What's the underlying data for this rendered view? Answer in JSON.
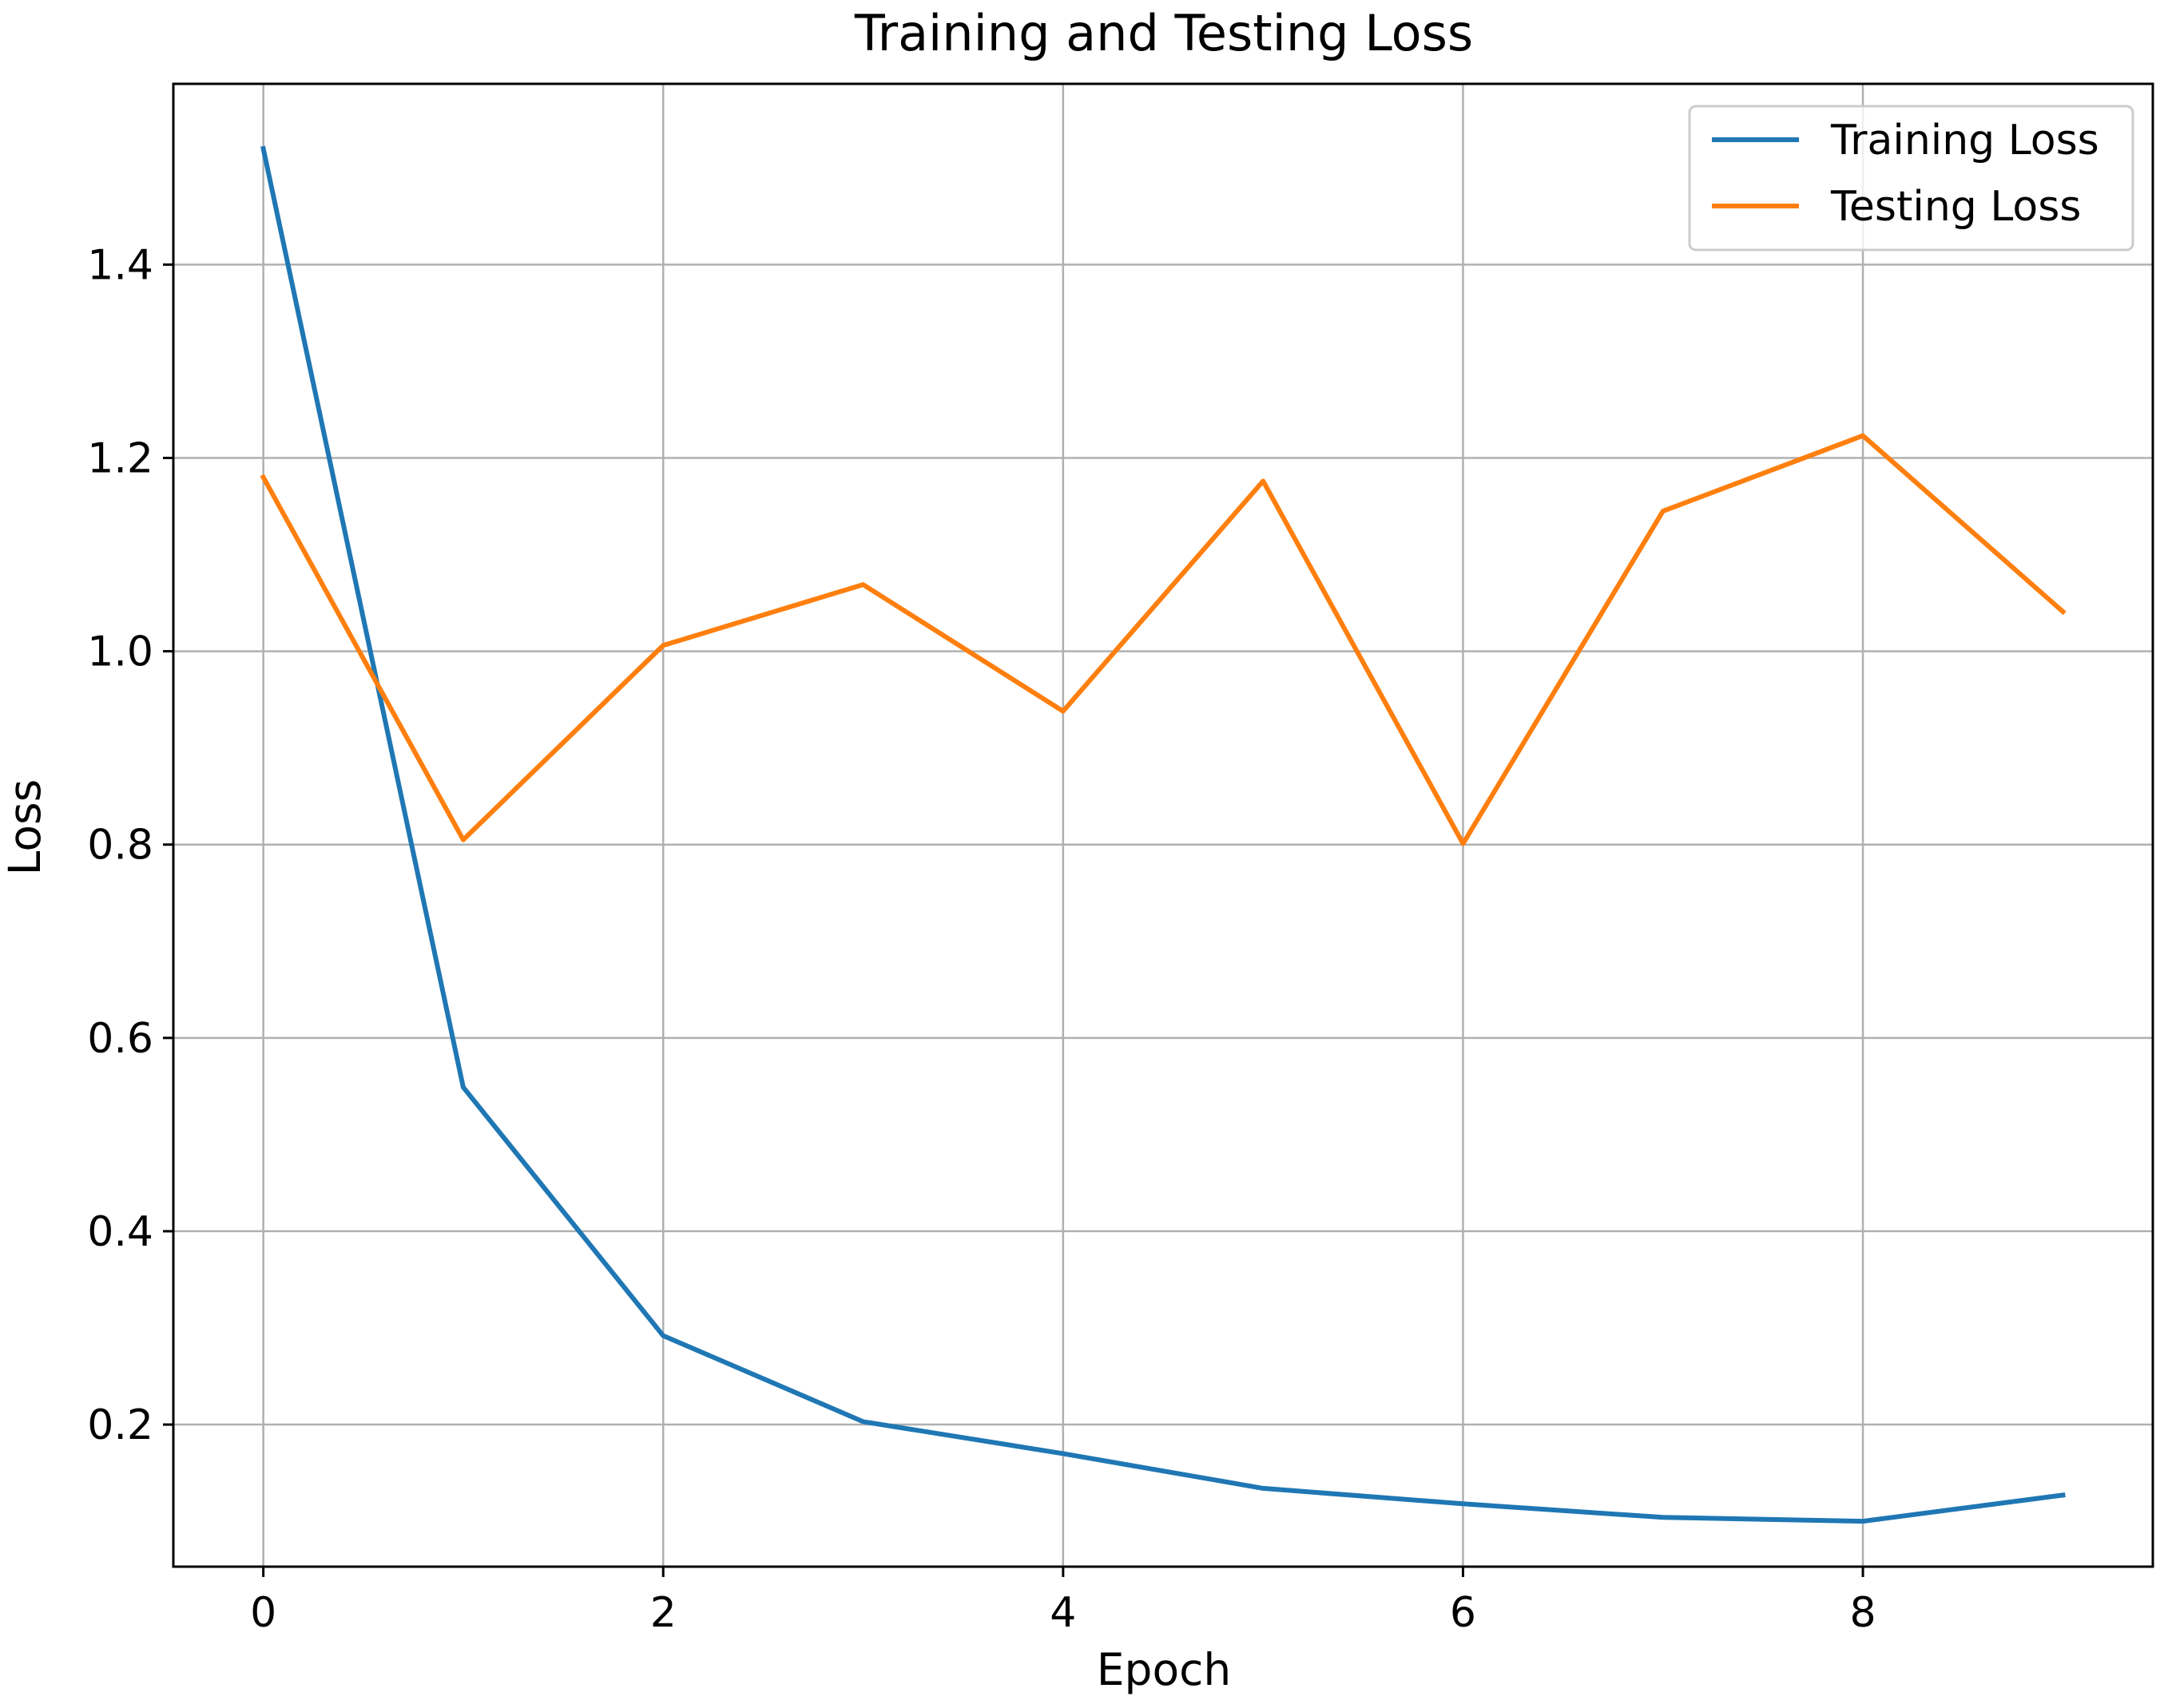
{
  "chart_data": {
    "type": "line",
    "title": "Training and Testing Loss",
    "xlabel": "Epoch",
    "ylabel": "Loss",
    "xlim": [
      -0.45,
      9.45
    ],
    "ylim": [
      0.053,
      1.587
    ],
    "x_ticks": [
      0,
      2,
      4,
      6,
      8
    ],
    "y_ticks": [
      0.2,
      0.4,
      0.6,
      0.8,
      1.0,
      1.2,
      1.4
    ],
    "y_tick_labels": [
      "0.2",
      "0.4",
      "0.6",
      "0.8",
      "1.0",
      "1.2",
      "1.4"
    ],
    "grid": true,
    "legend_position": "top-right",
    "x": [
      0,
      1,
      2,
      3,
      4,
      5,
      6,
      7,
      8,
      9
    ],
    "series": [
      {
        "name": "Training Loss",
        "color": "#1f77b4",
        "values": [
          1.52,
          0.549,
          0.292,
          0.203,
          0.17,
          0.134,
          0.118,
          0.104,
          0.1,
          0.127
        ]
      },
      {
        "name": "Testing Loss",
        "color": "#ff7f0e",
        "values": [
          1.18,
          0.805,
          1.006,
          1.069,
          0.938,
          1.176,
          0.801,
          1.145,
          1.223,
          1.041
        ]
      }
    ]
  }
}
